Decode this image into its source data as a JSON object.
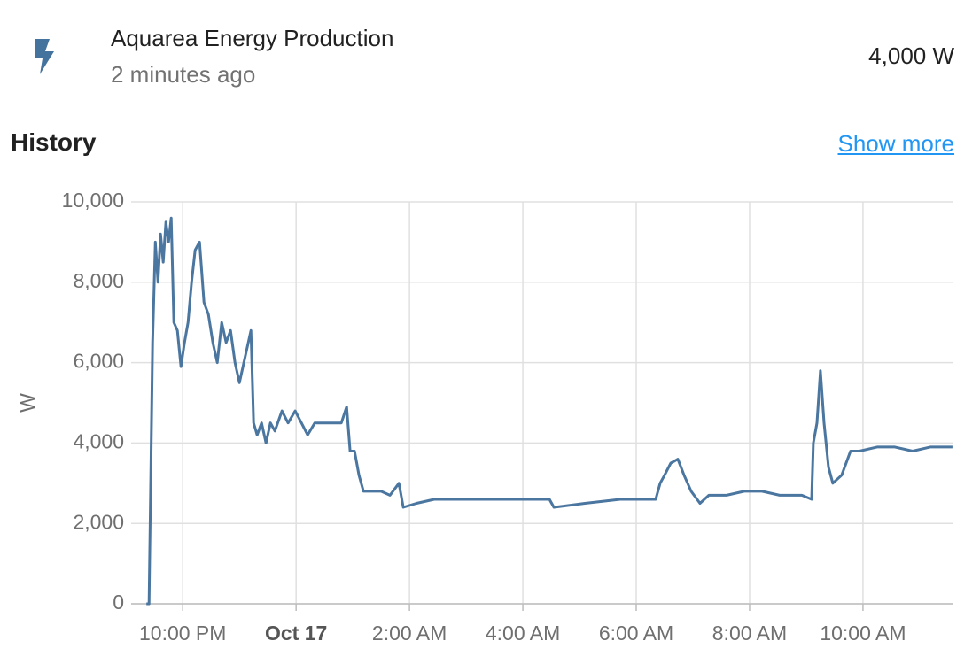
{
  "header": {
    "title": "Aquarea Energy Production",
    "subtitle": "2 minutes ago",
    "state": "4,000 W"
  },
  "section": {
    "title": "History",
    "link": "Show more"
  },
  "chart_data": {
    "type": "line",
    "y_label": "W",
    "x": [
      21.359,
      21.406,
      21.469,
      21.516,
      21.563,
      21.609,
      21.656,
      21.703,
      21.75,
      21.797,
      21.844,
      21.906,
      21.969,
      22.031,
      22.094,
      22.156,
      22.219,
      22.297,
      22.375,
      22.453,
      22.531,
      22.609,
      22.688,
      22.766,
      22.844,
      22.922,
      23.0,
      23.078,
      23.156,
      23.203,
      23.25,
      23.313,
      23.391,
      23.469,
      23.547,
      23.625,
      23.75,
      23.859,
      23.984,
      24.094,
      24.203,
      24.328,
      24.563,
      24.797,
      24.891,
      24.953,
      25.031,
      25.109,
      25.188,
      25.344,
      25.5,
      25.656,
      25.813,
      25.891,
      26.125,
      26.438,
      27.219,
      28.469,
      28.547,
      29.094,
      29.719,
      30.344,
      30.422,
      30.5,
      30.609,
      30.734,
      30.844,
      30.969,
      31.125,
      31.281,
      31.594,
      31.906,
      32.219,
      32.531,
      32.922,
      33.094,
      33.125,
      33.188,
      33.25,
      33.313,
      33.391,
      33.469,
      33.625,
      33.781,
      33.938,
      34.25,
      34.563,
      34.875,
      35.188,
      35.578
    ],
    "series": [
      {
        "name": "Aquarea Energy Production",
        "color": "#4a76a0",
        "values": [
          0,
          0,
          6500,
          9000,
          8000,
          9200,
          8500,
          9500,
          9000,
          9600,
          7000,
          6800,
          5900,
          6500,
          7000,
          8000,
          8800,
          9000,
          7500,
          7200,
          6500,
          6000,
          7000,
          6500,
          6800,
          6000,
          5500,
          6000,
          6500,
          6800,
          4500,
          4200,
          4500,
          4000,
          4500,
          4300,
          4800,
          4500,
          4800,
          4500,
          4200,
          4500,
          4500,
          4500,
          4900,
          3800,
          3800,
          3200,
          2800,
          2800,
          2800,
          2700,
          3000,
          2400,
          2500,
          2600,
          2600,
          2600,
          2400,
          2500,
          2600,
          2600,
          3000,
          3200,
          3500,
          3600,
          3200,
          2800,
          2500,
          2700,
          2700,
          2800,
          2800,
          2700,
          2700,
          2600,
          4000,
          4500,
          5800,
          4500,
          3400,
          3000,
          3200,
          3800,
          3800,
          3900,
          3900,
          3800,
          3900,
          3900
        ]
      }
    ],
    "xlim": [
      21.09,
      35.58
    ],
    "xticks": [
      {
        "value": 22,
        "label": "10:00 PM"
      },
      {
        "value": 24,
        "label": "Oct 17"
      },
      {
        "value": 26,
        "label": "2:00 AM"
      },
      {
        "value": 28,
        "label": "4:00 AM"
      },
      {
        "value": 30,
        "label": "6:00 AM"
      },
      {
        "value": 32,
        "label": "8:00 AM"
      },
      {
        "value": 34,
        "label": "10:00 AM"
      }
    ],
    "ylim": [
      0,
      10000
    ],
    "yticks": [
      0,
      {
        "value": 2000,
        "label": "2,000"
      },
      {
        "value": 4000,
        "label": "4,000"
      },
      {
        "value": 6000,
        "label": "6,000"
      },
      {
        "value": 8000,
        "label": "8,000"
      },
      {
        "value": 10000,
        "label": "10,000"
      }
    ],
    "grid": true
  }
}
